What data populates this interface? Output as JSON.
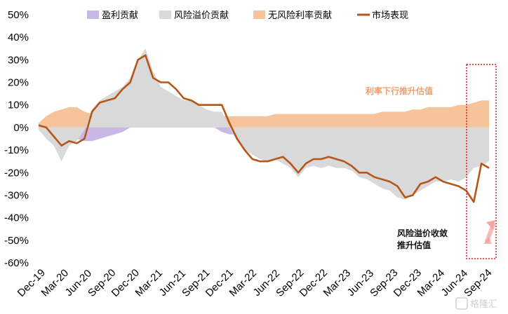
{
  "colors": {
    "earnings": "#c9b8e6",
    "risk_premium": "#d9d9d9",
    "risk_free": "#f7c39a",
    "market": "#b5571a",
    "highlight_box": "#e31c1c",
    "arrow": "#f2a0a0",
    "annotation_top": "#f0a070",
    "annotation_bottom": "#111111"
  },
  "annotations": {
    "rate_down": "利率下行推升估值",
    "premium_line1": "风险溢价收敛",
    "premium_line2": "推升估值"
  },
  "watermark": "格隆汇",
  "chart_data": {
    "type": "area",
    "ylim": [
      -60,
      50
    ],
    "yticks": [
      50,
      40,
      30,
      20,
      10,
      0,
      -10,
      -20,
      -30,
      -40,
      -50,
      -60
    ],
    "ytick_labels": [
      "50%",
      "40%",
      "30%",
      "20%",
      "10%",
      "0%",
      "-10%",
      "-20%",
      "-30%",
      "-40%",
      "-50%",
      "-60%"
    ],
    "xtick_labels": [
      "Dec-19",
      "Mar-20",
      "Jun-20",
      "Sep-20",
      "Dec-20",
      "Mar-21",
      "Jun-21",
      "Sep-21",
      "Dec-21",
      "Mar-22",
      "Jun-22",
      "Sep-22",
      "Dec-22",
      "Mar-23",
      "Jun-23",
      "Sep-23",
      "Dec-23",
      "Mar-24",
      "Jun-24",
      "Sep-24"
    ],
    "grid": false,
    "legend_position": "top",
    "legend": [
      {
        "key": "earnings",
        "label": "盈利贡献",
        "kind": "area"
      },
      {
        "key": "risk_premium",
        "label": "风险溢价贡献",
        "kind": "area"
      },
      {
        "key": "risk_free",
        "label": "无风险利率贡献",
        "kind": "area"
      },
      {
        "key": "market",
        "label": "市场表现",
        "kind": "line"
      }
    ],
    "x": [
      "Dec-19",
      "Jan-20",
      "Feb-20",
      "Mar-20",
      "Apr-20",
      "May-20",
      "Jun-20",
      "Jul-20",
      "Aug-20",
      "Sep-20",
      "Oct-20",
      "Nov-20",
      "Dec-20",
      "Jan-21",
      "Feb-21",
      "Mar-21",
      "Apr-21",
      "May-21",
      "Jun-21",
      "Jul-21",
      "Aug-21",
      "Sep-21",
      "Oct-21",
      "Nov-21",
      "Dec-21",
      "Jan-22",
      "Feb-22",
      "Mar-22",
      "Apr-22",
      "May-22",
      "Jun-22",
      "Jul-22",
      "Aug-22",
      "Sep-22",
      "Oct-22",
      "Nov-22",
      "Dec-22",
      "Jan-23",
      "Feb-23",
      "Mar-23",
      "Apr-23",
      "May-23",
      "Jun-23",
      "Jul-23",
      "Aug-23",
      "Sep-23",
      "Oct-23",
      "Nov-23",
      "Dec-23",
      "Jan-24",
      "Feb-24",
      "Mar-24",
      "Apr-24",
      "May-24",
      "Jun-24",
      "Jul-24",
      "Aug-24",
      "Sep-24",
      "Oct-24",
      "Nov-24"
    ],
    "series": [
      {
        "key": "risk_free",
        "name": "无风险利率贡献",
        "values": [
          2,
          5,
          7,
          8,
          9,
          9,
          7,
          6,
          5,
          4,
          4,
          4,
          4,
          3,
          3,
          3,
          3,
          3,
          3,
          3,
          3,
          3,
          4,
          4,
          5,
          5,
          5,
          5,
          5,
          5,
          5,
          6,
          6,
          6,
          6,
          6,
          6,
          6,
          6,
          6,
          6,
          6,
          6,
          6,
          6,
          7,
          7,
          7,
          7,
          8,
          8,
          9,
          9,
          9,
          9,
          10,
          10,
          11,
          12,
          12
        ]
      },
      {
        "key": "earnings",
        "name": "盈利贡献",
        "values": [
          0,
          -1,
          -2,
          -3,
          -4,
          -5,
          -6,
          -6,
          -5,
          -4,
          -3,
          -2,
          0,
          1,
          2,
          3,
          4,
          5,
          5,
          5,
          4,
          3,
          2,
          0,
          -2,
          -3,
          -3,
          -3,
          -3,
          -3,
          -3,
          -3,
          -3,
          -3,
          -3,
          -2,
          -2,
          -2,
          -2,
          -2,
          -2,
          -2,
          -2,
          -2,
          -2,
          -2,
          -2,
          -2,
          -2,
          -3,
          -4,
          -5,
          -6,
          -6,
          -7,
          -8,
          -9,
          -10,
          -11,
          -11
        ]
      },
      {
        "key": "risk_premium",
        "name": "风险溢价贡献",
        "values": [
          -1,
          -5,
          -8,
          -15,
          -8,
          -6,
          -1,
          8,
          12,
          14,
          16,
          18,
          22,
          30,
          35,
          25,
          18,
          16,
          14,
          12,
          12,
          10,
          8,
          7,
          7,
          0,
          -6,
          -10,
          -12,
          -14,
          -15,
          -14,
          -16,
          -18,
          -22,
          -18,
          -17,
          -18,
          -17,
          -18,
          -18,
          -19,
          -22,
          -23,
          -25,
          -27,
          -28,
          -31,
          -32,
          -30,
          -28,
          -26,
          -24,
          -24,
          -23,
          -24,
          -22,
          -18,
          -17,
          -15
        ]
      },
      {
        "key": "market",
        "name": "市场表现",
        "values": [
          1,
          0,
          -4,
          -8,
          -6,
          -7,
          -5,
          7,
          11,
          12,
          13,
          17,
          20,
          30,
          32,
          22,
          20,
          20,
          17,
          13,
          12,
          10,
          10,
          10,
          10,
          2,
          -5,
          -10,
          -14,
          -15,
          -15,
          -14,
          -13,
          -16,
          -20,
          -16,
          -14,
          -14,
          -13,
          -14,
          -15,
          -17,
          -20,
          -20,
          -22,
          -23,
          -24,
          -26,
          -31,
          -30,
          -25,
          -24,
          -22,
          -24,
          -25,
          -26,
          -28,
          -33,
          -16,
          -18
        ]
      }
    ]
  }
}
